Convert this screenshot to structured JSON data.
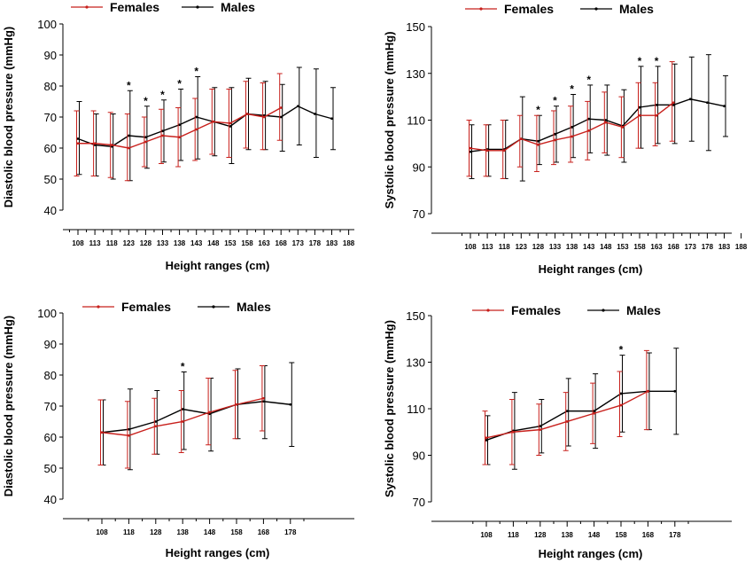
{
  "colors": {
    "females": "#c8201c",
    "males": "#000000"
  },
  "chart_data": [
    {
      "type": "line",
      "xlabel": "Height ranges (cm)",
      "ylabel": "Diastolic blood pressure (mmHg)",
      "ylim": [
        40,
        100
      ],
      "yticks": [
        40,
        50,
        60,
        70,
        80,
        90,
        100
      ],
      "categories": [
        "108",
        "113",
        "118",
        "123",
        "128",
        "133",
        "138",
        "143",
        "148",
        "153",
        "158",
        "163",
        "168",
        "173",
        "178",
        "183",
        "188"
      ],
      "legend": [
        "Females",
        "Males"
      ],
      "series": [
        {
          "name": "Females",
          "values": [
            61.5,
            61.5,
            61.0,
            60.0,
            62.0,
            64.0,
            63.5,
            66.0,
            68.5,
            68.0,
            71.0,
            70.0,
            73.0,
            null,
            null,
            null,
            null
          ],
          "upper": [
            72.0,
            72.0,
            71.5,
            71.0,
            70.0,
            72.5,
            73.0,
            76.0,
            79.0,
            79.0,
            81.5,
            81.0,
            84.0,
            null,
            null,
            null,
            null
          ],
          "lower": [
            51.0,
            51.0,
            50.5,
            49.5,
            54.0,
            55.0,
            54.0,
            56.0,
            58.0,
            57.0,
            60.0,
            59.5,
            62.5,
            null,
            null,
            null,
            null
          ]
        },
        {
          "name": "Males",
          "values": [
            63.0,
            61.0,
            60.5,
            64.0,
            63.5,
            65.5,
            67.5,
            70.0,
            68.5,
            67.0,
            71.0,
            70.5,
            70.0,
            73.5,
            71.0,
            69.5,
            null
          ],
          "upper": [
            75.0,
            71.0,
            71.0,
            78.5,
            73.5,
            75.5,
            79.0,
            83.0,
            79.5,
            79.5,
            82.5,
            81.5,
            80.5,
            86.0,
            85.5,
            79.5,
            null
          ],
          "lower": [
            51.5,
            51.0,
            50.0,
            49.5,
            53.5,
            55.5,
            56.0,
            56.5,
            57.5,
            55.0,
            59.5,
            59.5,
            59.0,
            61.0,
            57.0,
            59.5,
            null
          ]
        }
      ],
      "significance": [
        "123",
        "128",
        "133",
        "138",
        "143"
      ]
    },
    {
      "type": "line",
      "xlabel": "Height ranges (cm)",
      "ylabel": "Systolic blood pressure (mmHg)",
      "ylim": [
        70,
        150
      ],
      "yticks": [
        70,
        90,
        110,
        130,
        150
      ],
      "categories": [
        "108",
        "113",
        "118",
        "123",
        "128",
        "133",
        "138",
        "143",
        "148",
        "153",
        "158",
        "163",
        "168",
        "173",
        "178",
        "183",
        "188"
      ],
      "legend": [
        "Females",
        "Males"
      ],
      "series": [
        {
          "name": "Females",
          "values": [
            98,
            97,
            97,
            102,
            99.5,
            101.5,
            103,
            105.5,
            109,
            107,
            112,
            112,
            117.5,
            null,
            null,
            null,
            null
          ],
          "upper": [
            110,
            108,
            110,
            112,
            112,
            114,
            116,
            118,
            122,
            120,
            126,
            126,
            135,
            null,
            null,
            null,
            null
          ],
          "lower": [
            86,
            86,
            85,
            90,
            88,
            91,
            92,
            93,
            96,
            94,
            98,
            99,
            101,
            null,
            null,
            null,
            null
          ]
        },
        {
          "name": "Males",
          "values": [
            96.5,
            97.5,
            97.5,
            102,
            101,
            104,
            107,
            110.5,
            110,
            107.5,
            115.5,
            116.5,
            116.5,
            119,
            117.5,
            116,
            null
          ],
          "upper": [
            108,
            108,
            110,
            120,
            112,
            116,
            121,
            125,
            125,
            123,
            133,
            133,
            134,
            137,
            138,
            129,
            null
          ],
          "lower": [
            85,
            86,
            85,
            84,
            91,
            92,
            94,
            96,
            95,
            92,
            98,
            100,
            100,
            101,
            97,
            103,
            null
          ]
        }
      ],
      "significance": [
        "128",
        "133",
        "138",
        "143",
        "158",
        "163"
      ]
    },
    {
      "type": "line",
      "xlabel": "Height ranges (cm)",
      "ylabel": "Diastolic blood pressure (mmHg)",
      "ylim": [
        40,
        100
      ],
      "yticks": [
        40,
        50,
        60,
        70,
        80,
        90,
        100
      ],
      "categories": [
        "108",
        "118",
        "128",
        "138",
        "148",
        "158",
        "168",
        "178"
      ],
      "legend": [
        "Females",
        "Males"
      ],
      "series": [
        {
          "name": "Females",
          "values": [
            61.5,
            60.5,
            63.5,
            65.0,
            68.0,
            70.5,
            72.5,
            null
          ],
          "upper": [
            72.0,
            71.5,
            72.5,
            75.0,
            79.0,
            81.5,
            83.0,
            null
          ],
          "lower": [
            51.0,
            50.0,
            54.5,
            55.0,
            57.5,
            59.5,
            62.0,
            null
          ]
        },
        {
          "name": "Males",
          "values": [
            61.5,
            62.5,
            65.0,
            69.0,
            67.5,
            70.5,
            71.5,
            70.5
          ],
          "upper": [
            72.0,
            75.5,
            75.0,
            81.0,
            79.0,
            82.0,
            83.0,
            84.0
          ],
          "lower": [
            51.0,
            49.5,
            54.5,
            56.0,
            55.5,
            59.5,
            59.5,
            57.0
          ]
        }
      ],
      "significance": [
        "138"
      ]
    },
    {
      "type": "line",
      "xlabel": "Height ranges (cm)",
      "ylabel": "Systolic blood pressure (mmHg)",
      "ylim": [
        70,
        150
      ],
      "yticks": [
        70,
        90,
        110,
        130,
        150
      ],
      "categories": [
        "108",
        "118",
        "128",
        "138",
        "148",
        "158",
        "168",
        "178"
      ],
      "legend": [
        "Females",
        "Males"
      ],
      "series": [
        {
          "name": "Females",
          "values": [
            97.5,
            100,
            101,
            104.5,
            108,
            111.5,
            117.5,
            null
          ],
          "upper": [
            109,
            114,
            112,
            117,
            121,
            126,
            135,
            null
          ],
          "lower": [
            86,
            86,
            90,
            92,
            95,
            98,
            101,
            null
          ]
        },
        {
          "name": "Males",
          "values": [
            96.5,
            100.5,
            102.5,
            109,
            109,
            116.5,
            117.5,
            117.5
          ],
          "upper": [
            107,
            117,
            114,
            123,
            125,
            133,
            134,
            136
          ],
          "lower": [
            86,
            84,
            91,
            94,
            93,
            100,
            101,
            99
          ]
        }
      ],
      "significance": [
        "158"
      ]
    }
  ]
}
